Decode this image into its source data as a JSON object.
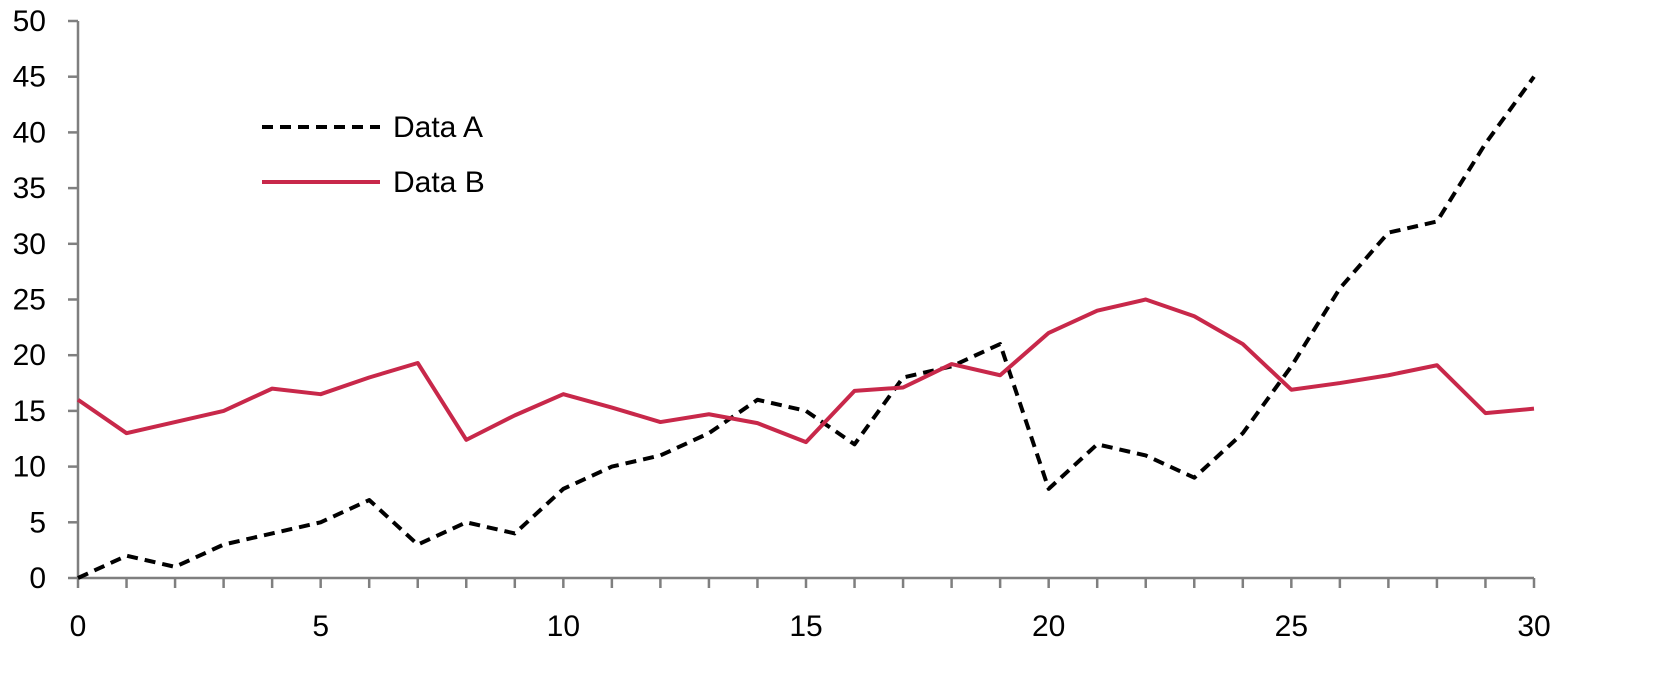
{
  "chart_data": {
    "type": "line",
    "title": "",
    "xlabel": "",
    "ylabel": "",
    "xlim": [
      0,
      30
    ],
    "ylim": [
      0,
      50
    ],
    "x_ticks": [
      0,
      5,
      10,
      15,
      20,
      25,
      30
    ],
    "y_ticks": [
      0,
      5,
      10,
      15,
      20,
      25,
      30,
      35,
      40,
      45,
      50
    ],
    "grid": false,
    "legend_position": "upper-left",
    "x": [
      0,
      1,
      2,
      3,
      4,
      5,
      6,
      7,
      8,
      9,
      10,
      11,
      12,
      13,
      14,
      15,
      16,
      17,
      18,
      19,
      20,
      21,
      22,
      23,
      24,
      25,
      26,
      27,
      28,
      29,
      30
    ],
    "series": [
      {
        "name": "Data A",
        "color": "#000000",
        "line_style": "dashed",
        "values": [
          0,
          2,
          1,
          3,
          4,
          5,
          7,
          3,
          5,
          4,
          8,
          10,
          11,
          13,
          16,
          15,
          12,
          18,
          19,
          21,
          8,
          12,
          11,
          9,
          13,
          19,
          26,
          31,
          32,
          39,
          45
        ]
      },
      {
        "name": "Data B",
        "color": "#c8284a",
        "line_style": "solid",
        "values": [
          16,
          13,
          14,
          15,
          17,
          16.5,
          18,
          19.3,
          12.4,
          14.6,
          16.5,
          15.3,
          14,
          14.7,
          13.9,
          12.2,
          16.8,
          17.1,
          19.2,
          18.2,
          22,
          24,
          25,
          23.5,
          21,
          16.9,
          17.5,
          18.2,
          19.1,
          14.8,
          15.2
        ]
      }
    ]
  }
}
